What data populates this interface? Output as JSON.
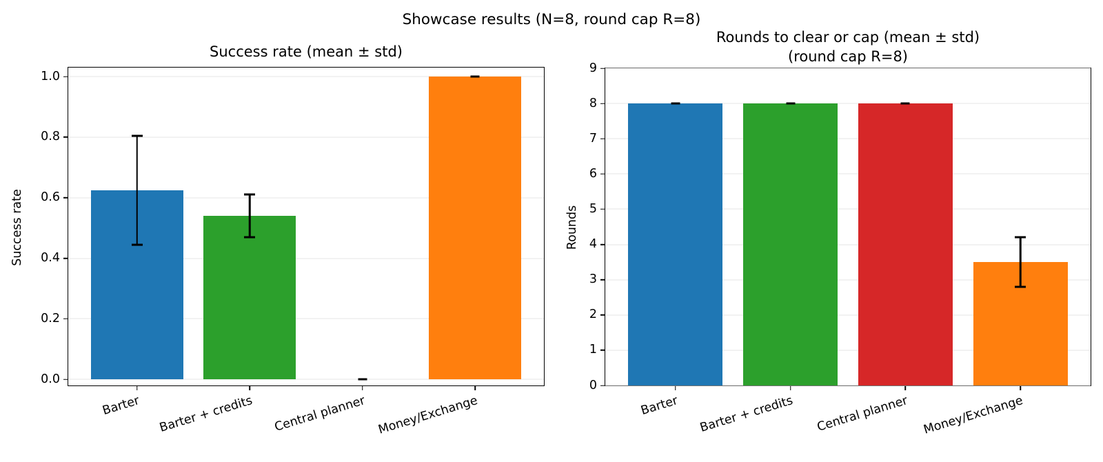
{
  "figure": {
    "suptitle": "Showcase results (N=8, round cap R=8)"
  },
  "style": {
    "background": "#ffffff",
    "bar_palette": [
      "#1f77b4",
      "#2ca02c",
      "#d62728",
      "#ff7f0e"
    ],
    "errorbar_color": "#000000",
    "gridline_color": "#e4e4e4",
    "spine_color": "#000000",
    "text_color": "#000000"
  },
  "chart_data": [
    {
      "type": "bar",
      "title": "Success rate (mean ± std)",
      "ylabel": "Success rate",
      "categories": [
        "Barter",
        "Barter + credits",
        "Central planner",
        "Money/Exchange"
      ],
      "values": [
        0.625,
        0.54,
        0.0,
        1.0
      ],
      "errors_std": [
        0.18,
        0.07,
        0.003,
        0.005
      ],
      "bar_colors": [
        "#1f77b4",
        "#2ca02c",
        "#d62728",
        "#ff7f0e"
      ],
      "ylim": [
        -0.02,
        1.03
      ],
      "yticks": [
        0.0,
        0.2,
        0.4,
        0.6,
        0.8,
        1.0
      ],
      "ytick_labels": [
        "0.0",
        "0.2",
        "0.4",
        "0.6",
        "0.8",
        "1.0"
      ],
      "xtick_rotation_deg": 17,
      "grid": true,
      "legend": null
    },
    {
      "type": "bar",
      "title": "Rounds to clear or cap (mean ± std)\n(round cap R=8)",
      "ylabel": "Rounds",
      "categories": [
        "Barter",
        "Barter + credits",
        "Central planner",
        "Money/Exchange"
      ],
      "values": [
        8.0,
        8.0,
        8.0,
        3.5
      ],
      "errors_std": [
        0.03,
        0.03,
        0.03,
        0.7
      ],
      "bar_colors": [
        "#1f77b4",
        "#2ca02c",
        "#d62728",
        "#ff7f0e"
      ],
      "ylim": [
        0,
        9
      ],
      "yticks": [
        0,
        1,
        2,
        3,
        4,
        5,
        6,
        7,
        8,
        9
      ],
      "ytick_labels": [
        "0",
        "1",
        "2",
        "3",
        "4",
        "5",
        "6",
        "7",
        "8",
        "9"
      ],
      "xtick_rotation_deg": 17,
      "grid": true,
      "legend": null
    }
  ]
}
